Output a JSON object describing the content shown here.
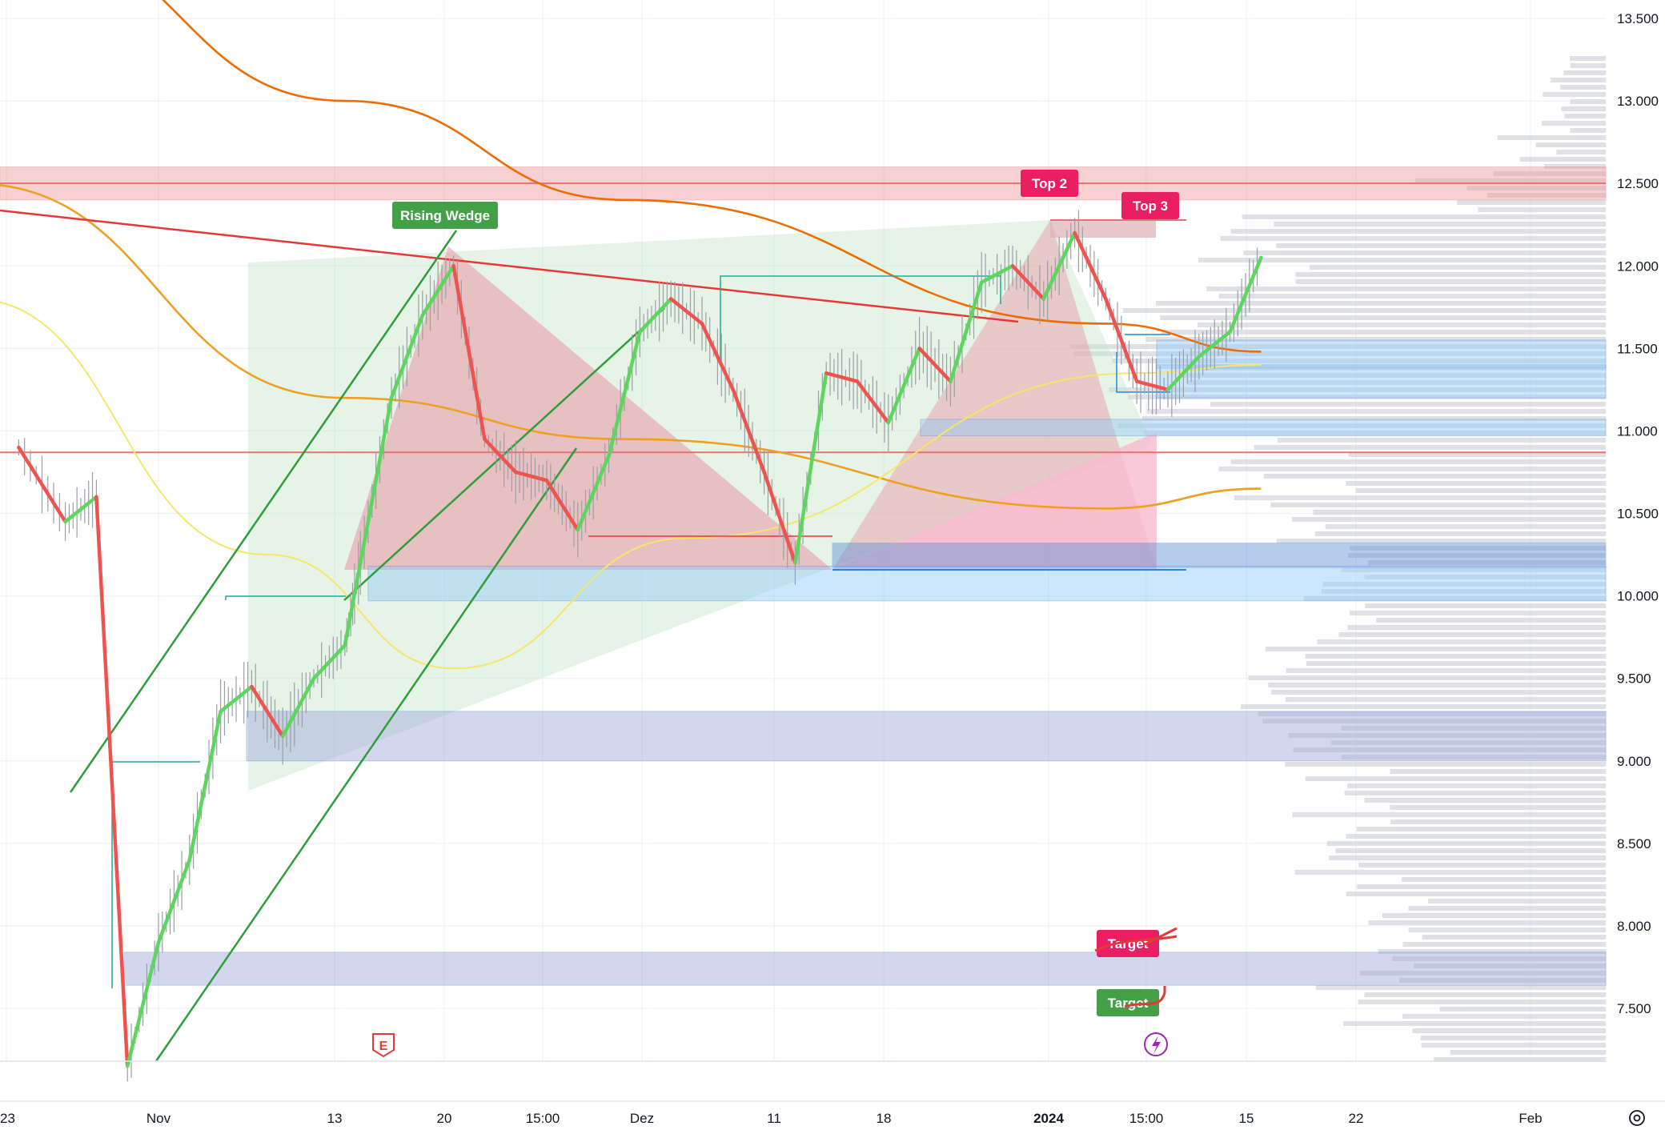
{
  "chart_data": {
    "type": "line",
    "title": "",
    "xlabel": "",
    "ylabel": "",
    "ylim": [
      7200,
      13600
    ],
    "y_ticks": [
      "13.500",
      "13.000",
      "12.500",
      "12.000",
      "11.500",
      "11.000",
      "10.500",
      "10.000",
      "9.500",
      "9.000",
      "8.500",
      "8.000",
      "7.500"
    ],
    "x_ticks": [
      "23",
      "Nov",
      "13",
      "20",
      "15:00",
      "Dez",
      "11",
      "18",
      "2024",
      "15:00",
      "15",
      "22",
      "Feb"
    ],
    "grid": true,
    "legend": "none",
    "series": [
      {
        "x": [
          "Okt 23",
          "Okt 26",
          "Okt 28",
          "Okt 30",
          "Nov 1",
          "Nov 3",
          "Nov 5",
          "Nov 7",
          "Nov 9",
          "Nov 11",
          "Nov 13",
          "Nov 14",
          "Nov 16",
          "Nov 18",
          "Nov 20",
          "Nov 22",
          "Nov 24",
          "Nov 26",
          "Nov 28",
          "Nov 30",
          "Dez 2",
          "Dez 4",
          "Dez 6",
          "Dez 8",
          "Dez 10",
          "Dez 12",
          "Dez 14",
          "Dez 16",
          "Dez 18",
          "Dez 20",
          "Dez 22",
          "Dez 24",
          "Dez 26",
          "Dez 28",
          "Dez 30",
          "Jan 1",
          "Jan 3",
          "Jan 5",
          "Jan 7",
          "Jan 9",
          "Jan 11"
        ],
        "values": [
          10900,
          10450,
          10600,
          7150,
          7900,
          8400,
          9300,
          9450,
          9150,
          9500,
          9700,
          10200,
          11200,
          11700,
          12000,
          10950,
          10750,
          10700,
          10400,
          10850,
          11600,
          11800,
          11650,
          11250,
          10750,
          10200,
          11350,
          11300,
          11050,
          11500,
          11300,
          11900,
          12000,
          11800,
          12200,
          11800,
          11300,
          11250,
          11450,
          11600,
          12050
        ],
        "color": "#ef5350"
      }
    ],
    "moving_averages": [
      {
        "color": "#ef6c00",
        "x": [
          "Okt 23",
          "Nov 13",
          "Dez 1",
          "Jan 1",
          "Jan 11"
        ],
        "values": [
          14000,
          13000,
          12400,
          11650,
          11480
        ]
      },
      {
        "color": "#f0a020",
        "x": [
          "Okt 20",
          "Nov 13",
          "Dez 1",
          "Jan 1",
          "Jan 11"
        ],
        "values": [
          12500,
          11200,
          10950,
          10530,
          10650
        ]
      },
      {
        "color": "#f5e66a",
        "x": [
          "Okt 20",
          "Nov 8",
          "Nov 20",
          "Dez 5",
          "Jan 3",
          "Jan 11"
        ],
        "values": [
          11800,
          10250,
          9560,
          10350,
          11350,
          11400
        ]
      }
    ],
    "zones": [
      {
        "kind": "resistance",
        "y_low": 12400,
        "y_high": 12600,
        "color": "#ef9a9a"
      },
      {
        "kind": "demand",
        "y_low": 11380,
        "y_high": 11550,
        "color": "#90caf9"
      },
      {
        "kind": "demand",
        "y_low": 11200,
        "y_high": 11400,
        "color": "#90caf9"
      },
      {
        "kind": "demand",
        "y_low": 10970,
        "y_high": 11070,
        "color": "#90caf9"
      },
      {
        "kind": "demand",
        "y_low": 10170,
        "y_high": 10320,
        "color": "#5c8fd6"
      },
      {
        "kind": "demand",
        "y_low": 9970,
        "y_high": 10180,
        "color": "#90caf9"
      },
      {
        "kind": "demand",
        "y_low": 9000,
        "y_high": 9300,
        "color": "#9fa8da"
      },
      {
        "kind": "demand",
        "y_low": 7640,
        "y_high": 7840,
        "color": "#9fa8da"
      }
    ],
    "horizontal_lines": [
      {
        "y": 12500,
        "color": "#e57373"
      },
      {
        "y": 10870,
        "color": "#e57373"
      }
    ],
    "annotations": [
      "Rising Wedge",
      "Top 2",
      "Top 3",
      "Target",
      "Target"
    ],
    "markers": [
      "E"
    ],
    "volume_profile": true
  },
  "colors": {
    "up": "#4caf50",
    "down": "#ef5350",
    "badge_red": "#e91e63",
    "badge_green": "#43a047",
    "grid": "#f0f3fa",
    "axis_text": "#131722"
  },
  "icons": {
    "earnings_marker": "earnings-icon",
    "lightning": "lightning-icon",
    "settings": "gear-icon"
  }
}
